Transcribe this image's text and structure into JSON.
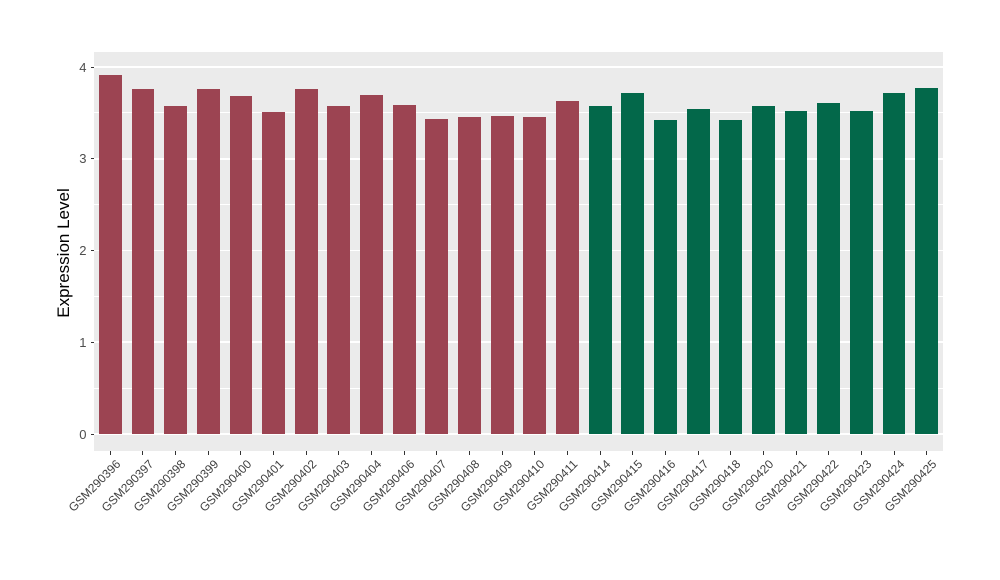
{
  "chart_data": {
    "type": "bar",
    "title": "",
    "xlabel": "",
    "ylabel": "Expression Level",
    "ylim": [
      0,
      4
    ],
    "y_major_ticks": [
      0,
      1,
      2,
      3,
      4
    ],
    "y_minor_gridlines": [
      0.5,
      1.5,
      2.5,
      3.5
    ],
    "grid": true,
    "legend": "none",
    "panel_background": "#EBEBEB",
    "gridline_color": "#FFFFFF",
    "categories": [
      "GSM290396",
      "GSM290397",
      "GSM290398",
      "GSM290399",
      "GSM290400",
      "GSM290401",
      "GSM290402",
      "GSM290403",
      "GSM290404",
      "GSM290406",
      "GSM290407",
      "GSM290408",
      "GSM290409",
      "GSM290410",
      "GSM290411",
      "GSM290414",
      "GSM290415",
      "GSM290416",
      "GSM290417",
      "GSM290418",
      "GSM290420",
      "GSM290421",
      "GSM290422",
      "GSM290423",
      "GSM290424",
      "GSM290425"
    ],
    "values": [
      3.91,
      3.76,
      3.57,
      3.76,
      3.68,
      3.51,
      3.76,
      3.58,
      3.7,
      3.59,
      3.43,
      3.45,
      3.47,
      3.45,
      3.63,
      3.57,
      3.72,
      3.42,
      3.54,
      3.42,
      3.58,
      3.52,
      3.61,
      3.52,
      3.72,
      3.77
    ],
    "groups": [
      "group1",
      "group1",
      "group1",
      "group1",
      "group1",
      "group1",
      "group1",
      "group1",
      "group1",
      "group1",
      "group1",
      "group1",
      "group1",
      "group1",
      "group1",
      "group2",
      "group2",
      "group2",
      "group2",
      "group2",
      "group2",
      "group2",
      "group2",
      "group2",
      "group2",
      "group2"
    ],
    "group_colors": {
      "group1": "#9C4452",
      "group2": "#03684A"
    }
  }
}
